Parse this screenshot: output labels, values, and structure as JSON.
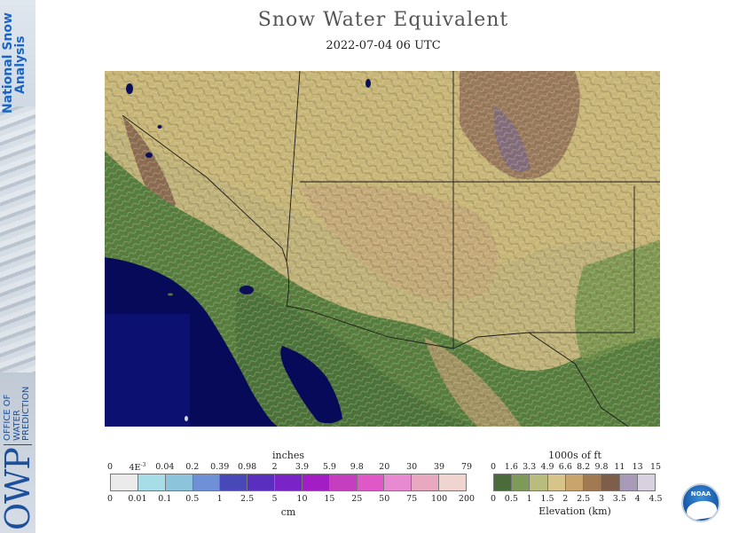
{
  "branding": {
    "side_title_line1": "National Snow",
    "side_title_line2": "Analysis",
    "owp_logo": "OWP",
    "owp_sub_line1": "OFFICE OF",
    "owp_sub_line2": "WATER",
    "owp_sub_line3": "PREDICTION",
    "noaa_logo": "NOAA"
  },
  "header": {
    "title": "Snow Water Equivalent",
    "timestamp": "2022-07-04 06 UTC"
  },
  "swe_legend": {
    "top_unit": "inches",
    "bottom_unit": "cm",
    "top_ticks": [
      "0",
      "4E",
      "0.04",
      "0.2",
      "0.39",
      "0.98",
      "2",
      "3.9",
      "5.9",
      "9.8",
      "20",
      "30",
      "39",
      "79"
    ],
    "top_tick_exp": "-3",
    "bottom_ticks": [
      "0",
      "0.01",
      "0.1",
      "0.5",
      "1",
      "2.5",
      "5",
      "10",
      "15",
      "25",
      "50",
      "75",
      "100",
      "200"
    ],
    "colors": [
      "#ebebeb",
      "#a6dde6",
      "#8cc4dc",
      "#6f8fd6",
      "#4848b8",
      "#5a2fc0",
      "#7a24c8",
      "#a21ec4",
      "#c63ec0",
      "#e057c8",
      "#e88ad2",
      "#e8a8c0",
      "#f0d4d0"
    ]
  },
  "elevation_legend": {
    "top_unit": "1000s of ft",
    "bottom_unit": "Elevation (km)",
    "top_ticks": [
      "0",
      "1.6",
      "3.3",
      "4.9",
      "6.6",
      "8.2",
      "9.8",
      "11",
      "13",
      "15"
    ],
    "bottom_ticks": [
      "0",
      "0.5",
      "1",
      "1.5",
      "2",
      "2.5",
      "3",
      "3.5",
      "4",
      "4.5"
    ],
    "colors": [
      "#4a6b3a",
      "#7e9a58",
      "#b8bc7c",
      "#d6c48a",
      "#c9a46c",
      "#a27a52",
      "#7c5e4a",
      "#a89ab8",
      "#d8d2e0"
    ]
  },
  "map": {
    "ocean_color": "#070a58",
    "deep_ocean_color": "#0c1070",
    "lowland_color": "#4f7a3c",
    "highland_color": "#c4b477",
    "mountain_color": "#9b7a58",
    "border_color": "#1b1b1b"
  }
}
